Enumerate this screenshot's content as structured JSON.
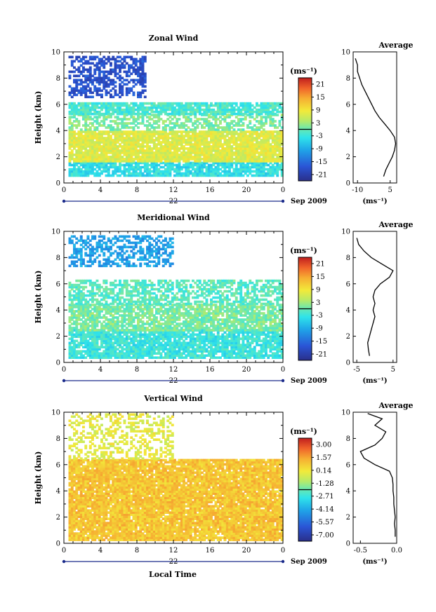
{
  "figure": {
    "xaxis_label": "Local Time"
  },
  "chart_data": [
    {
      "type": "heatmap",
      "title": "Zonal Wind",
      "ylabel": "Height (km)",
      "xlim": [
        0,
        24
      ],
      "ylim": [
        0,
        10
      ],
      "xticks": [
        "0",
        "4",
        "8",
        "12",
        "16",
        "20",
        "0"
      ],
      "yticks": [
        "0",
        "2",
        "4",
        "6",
        "8",
        "10"
      ],
      "date_left": "22",
      "date_right": "Sep 2009",
      "colorbar": {
        "unit": "(ms⁻¹)",
        "ticks": [
          "21",
          "15",
          "9",
          "3",
          "-3",
          "-9",
          "-15",
          "-21"
        ],
        "vmin": -24,
        "vmax": 24
      },
      "bands": [
        {
          "y0": 0.5,
          "y1": 1.6,
          "value": -4,
          "density": 0.82
        },
        {
          "y0": 1.6,
          "y1": 4.0,
          "value": 7,
          "density": 0.92
        },
        {
          "y0": 4.0,
          "y1": 5.2,
          "value": 1,
          "density": 0.55
        },
        {
          "y0": 5.2,
          "y1": 6.1,
          "value": -2,
          "density": 0.85
        },
        {
          "y0": 6.5,
          "y1": 9.6,
          "value": -18,
          "density": 0.55,
          "xmax": 9
        }
      ],
      "profile": {
        "title": "Average",
        "xlim": [
          -12,
          8
        ],
        "xticks": [
          "-10",
          "5"
        ],
        "xtick_values": [
          -10,
          5
        ],
        "xlabel": "(ms⁻¹)",
        "z": [
          0.5,
          1,
          1.5,
          2,
          2.5,
          3,
          3.5,
          4,
          4.5,
          5,
          5.5,
          6,
          6.5,
          7,
          7.5,
          8,
          8.5,
          9,
          9.5
        ],
        "u": [
          2,
          3,
          4.5,
          6,
          7,
          7.5,
          7,
          5,
          2.5,
          0,
          -2,
          -3.5,
          -5,
          -6.5,
          -8,
          -9,
          -10,
          -10,
          -11
        ]
      }
    },
    {
      "type": "heatmap",
      "title": "Meridional Wind",
      "ylabel": "Height (km)",
      "xlim": [
        0,
        24
      ],
      "ylim": [
        0,
        10
      ],
      "xticks": [
        "0",
        "4",
        "8",
        "12",
        "16",
        "20",
        "0"
      ],
      "yticks": [
        "0",
        "2",
        "4",
        "6",
        "8",
        "10"
      ],
      "date_left": "22",
      "date_right": "Sep 2009",
      "colorbar": {
        "unit": "(ms⁻¹)",
        "ticks": [
          "21",
          "15",
          "9",
          "3",
          "-3",
          "-9",
          "-15",
          "-21"
        ],
        "vmin": -24,
        "vmax": 24
      },
      "bands": [
        {
          "y0": 0.3,
          "y1": 2.4,
          "value": -3,
          "density": 0.85
        },
        {
          "y0": 2.4,
          "y1": 4.4,
          "value": 1,
          "density": 0.8
        },
        {
          "y0": 4.4,
          "y1": 6.2,
          "value": -1,
          "density": 0.6
        },
        {
          "y0": 7.3,
          "y1": 9.6,
          "value": -10,
          "density": 0.5,
          "xmax": 12
        }
      ],
      "profile": {
        "title": "Average",
        "xlim": [
          -6,
          6
        ],
        "xticks": [
          "-5",
          "5"
        ],
        "xtick_values": [
          -5,
          5
        ],
        "xlabel": "(ms⁻¹)",
        "z": [
          0.5,
          1,
          1.5,
          2,
          2.5,
          3,
          3.5,
          4,
          4.5,
          5,
          5.5,
          6,
          6.5,
          7,
          7.5,
          8,
          8.5,
          9,
          9.5
        ],
        "u": [
          -1.5,
          -1.8,
          -2,
          -1.5,
          -1,
          -0.5,
          0,
          -0.5,
          0,
          -0.5,
          0,
          1.5,
          4,
          5,
          2,
          -1,
          -3,
          -4.5,
          -5
        ]
      }
    },
    {
      "type": "heatmap",
      "title": "Vertical Wind",
      "ylabel": "Height (km)",
      "xlabel": "Local Time",
      "xlim": [
        0,
        24
      ],
      "ylim": [
        0,
        10
      ],
      "xticks": [
        "0",
        "4",
        "8",
        "12",
        "16",
        "20",
        "0"
      ],
      "yticks": [
        "0",
        "2",
        "4",
        "6",
        "8",
        "10"
      ],
      "date_left": "22",
      "date_right": "Sep 2009",
      "colorbar": {
        "unit": "(ms⁻¹)",
        "ticks": [
          "3.00",
          "1.57",
          "0.14",
          "-1.28",
          "-2.71",
          "-4.14",
          "-5.57",
          "-7.00"
        ],
        "vmin": -7.7,
        "vmax": 3.7
      },
      "bands": [
        {
          "y0": 0.2,
          "y1": 6.4,
          "value": 0.9,
          "density": 0.93
        },
        {
          "y0": 6.4,
          "y1": 9.8,
          "value": -0.2,
          "density": 0.4,
          "xmax": 12
        }
      ],
      "profile": {
        "title": "Average",
        "xlim": [
          -0.6,
          0.0
        ],
        "xticks": [
          "-0.5",
          "0.0"
        ],
        "xtick_values": [
          -0.5,
          0.0
        ],
        "xlabel": "(ms⁻¹)",
        "z": [
          0.5,
          1,
          1.5,
          2,
          2.5,
          3,
          3.5,
          4,
          4.5,
          5,
          5.5,
          6,
          6.5,
          7,
          7.5,
          8,
          8.5,
          9,
          9.5,
          9.9
        ],
        "u": [
          -0.02,
          -0.02,
          -0.03,
          -0.02,
          -0.03,
          -0.04,
          -0.04,
          -0.05,
          -0.05,
          -0.06,
          -0.1,
          -0.3,
          -0.45,
          -0.5,
          -0.3,
          -0.2,
          -0.15,
          -0.3,
          -0.2,
          -0.4
        ]
      }
    }
  ]
}
